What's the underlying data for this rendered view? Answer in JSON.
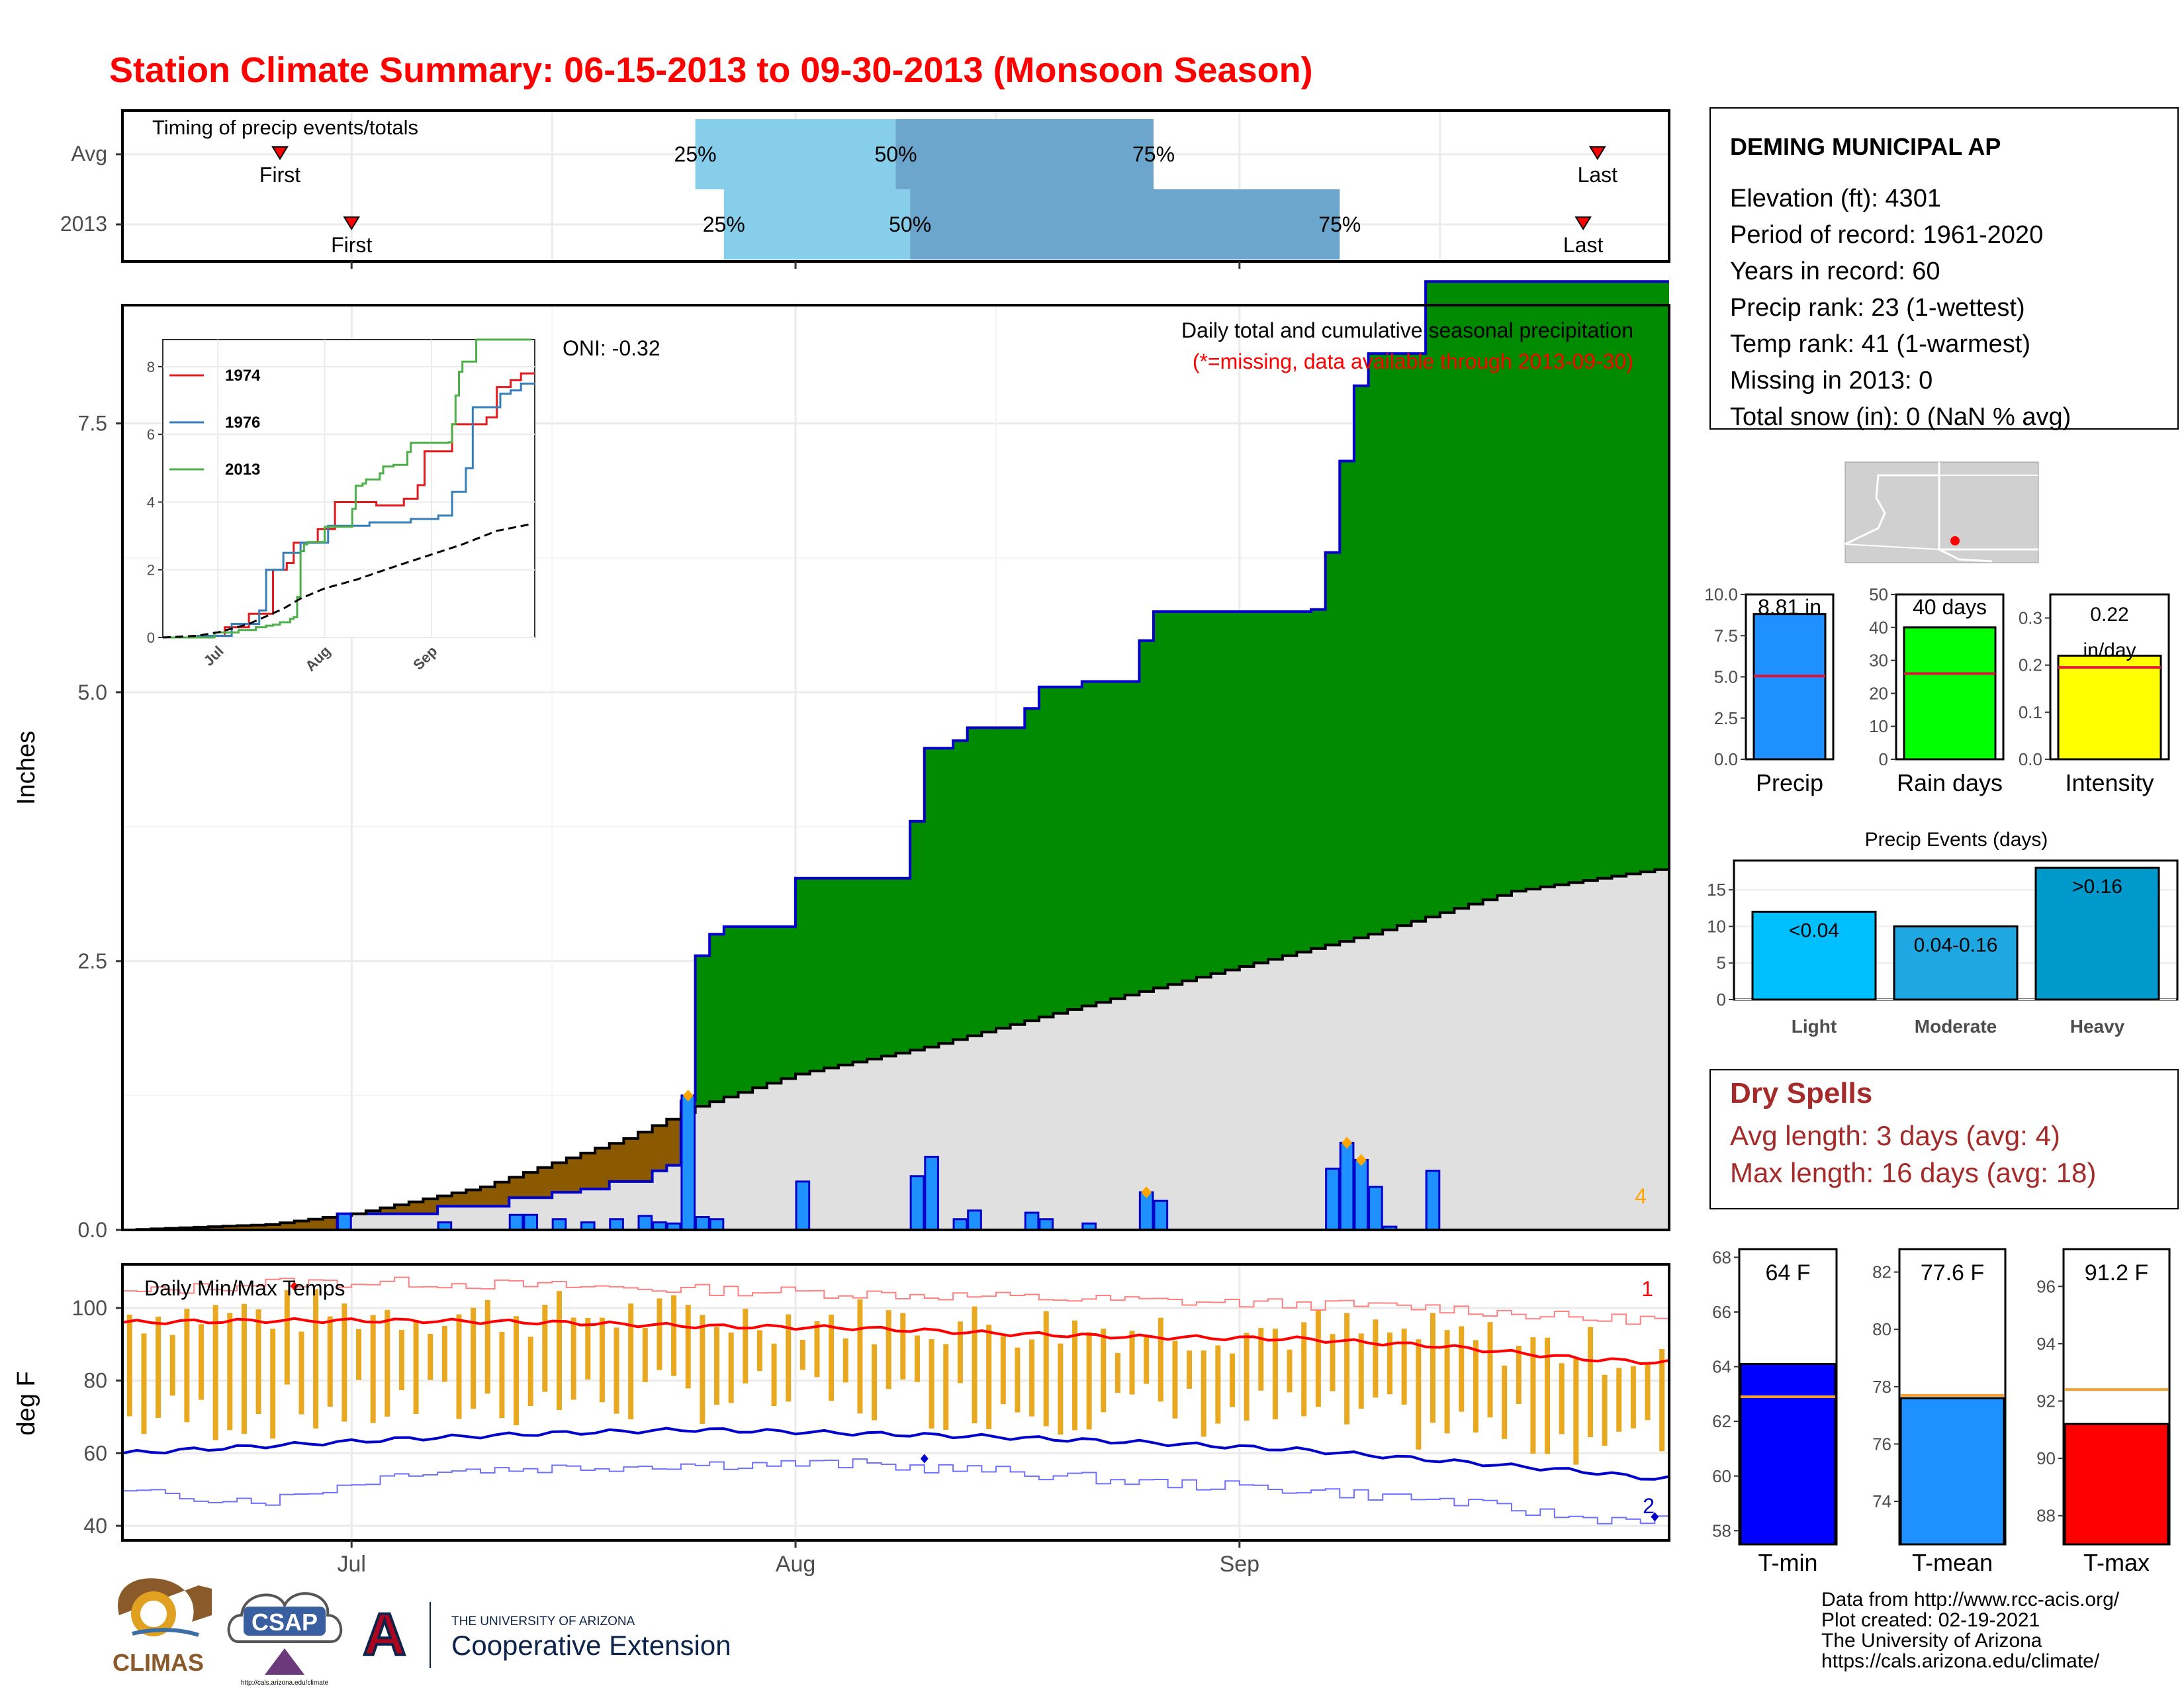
{
  "title": "Station Climate Summary: 06-15-2013 to 09-30-2013 (Monsoon Season)",
  "month_labels": [
    "Jul",
    "Aug",
    "Sep"
  ],
  "timing": {
    "label": "Timing of precip events/totals",
    "rows": [
      {
        "name": "Avg",
        "first": "2013-06-26",
        "p25": "2013-07-25",
        "p50": "2013-08-08",
        "p75": "2013-08-26",
        "last": "2013-09-26"
      },
      {
        "name": "2013",
        "first": "2013-07-01",
        "p25": "2013-07-27",
        "p50": "2013-08-09",
        "p75": "2013-09-08",
        "last": "2013-09-25"
      }
    ],
    "first_label": "First",
    "last_label": "Last",
    "pct_labels": [
      "25%",
      "50%",
      "75%"
    ]
  },
  "precip": {
    "ylabel": "Inches",
    "y_ticks": [
      "0.0",
      "2.5",
      "5.0",
      "7.5"
    ],
    "subtitle": "Daily total and cumulative seasonal precipitation",
    "note": "(*=missing, data available through 2013-09-30)",
    "oni": "ONI: -0.32",
    "count_label": "4"
  },
  "inset": {
    "legend": [
      "1974",
      "1976",
      "2013"
    ],
    "y_ticks": [
      "0",
      "2",
      "4",
      "6",
      "8"
    ],
    "x_ticks": [
      "Jul",
      "Aug",
      "Sep"
    ]
  },
  "temps": {
    "label": "Daily Min/Max Temps",
    "ylabel": "deg F",
    "y_ticks": [
      "40",
      "60",
      "80",
      "100"
    ],
    "high_count": "1",
    "low_count": "2"
  },
  "station": {
    "name": "DEMING MUNICIPAL AP",
    "lines": [
      "Elevation (ft): 4301",
      "Period of record: 1961-2020",
      "Years in record: 60",
      "Precip rank: 23 (1-wettest)",
      "Temp rank: 41 (1-warmest)",
      "Missing in 2013: 0",
      "Total snow (in): 0 (NaN % avg)"
    ]
  },
  "small_bars": [
    {
      "name": "Precip",
      "label": "8.81 in",
      "value": 8.81,
      "avg": 5.05,
      "ymax": 10,
      "ticks": [
        "0.0",
        "2.5",
        "5.0",
        "7.5",
        "10.0"
      ],
      "color": "#1e90ff"
    },
    {
      "name": "Rain days",
      "label": "40 days",
      "value": 40,
      "avg": 26,
      "ymax": 50,
      "ticks": [
        "0",
        "10",
        "20",
        "30",
        "40",
        "50"
      ],
      "color": "#00ff00"
    },
    {
      "name": "Intensity",
      "label": "0.22 in/day",
      "value": 0.22,
      "avg": 0.195,
      "ymax": 0.35,
      "ticks": [
        "0.0",
        "0.1",
        "0.2",
        "0.3"
      ],
      "color": "#ffff00"
    }
  ],
  "events": {
    "title": "Precip Events (days)",
    "ticks": [
      "0",
      "5",
      "10",
      "15"
    ],
    "bars": [
      {
        "name": "Light",
        "label": "<0.04",
        "value": 12,
        "color": "#00bfff"
      },
      {
        "name": "Moderate",
        "label": "0.04-0.16",
        "value": 10,
        "color": "#1ea7e0"
      },
      {
        "name": "Heavy",
        "label": ">0.16",
        "value": 18,
        "color": "#0099cc"
      }
    ]
  },
  "dry_spells": {
    "title": "Dry Spells",
    "lines": [
      "Avg length: 3 days (avg: 4)",
      "Max length: 16 days (avg: 18)"
    ]
  },
  "temp_bars": [
    {
      "name": "T-min",
      "label": "64 F",
      "value": 64.1,
      "avg": 62.9,
      "ymin": 57.5,
      "ymax": 68.3,
      "ticks": [
        "58",
        "60",
        "62",
        "64",
        "66",
        "68"
      ],
      "color": "#0000ff"
    },
    {
      "name": "T-mean",
      "label": "77.6 F",
      "value": 77.6,
      "avg": 77.7,
      "ymin": 72.5,
      "ymax": 82.8,
      "ticks": [
        "74",
        "76",
        "78",
        "80",
        "82"
      ],
      "color": "#1e90ff"
    },
    {
      "name": "T-max",
      "label": "91.2 F",
      "value": 91.2,
      "avg": 92.4,
      "ymin": 87,
      "ymax": 97.3,
      "ticks": [
        "88",
        "90",
        "92",
        "94",
        "96"
      ],
      "color": "#ff0000"
    }
  ],
  "footer": [
    "Data from http://www.rcc-acis.org/",
    "Plot created: 02-19-2021",
    "The University of Arizona",
    "https://cals.arizona.edu/climate/"
  ],
  "logos": {
    "climas": "CLIMAS",
    "csap": "CSAP",
    "csap_url": "http://cals.arizona.edu/climate",
    "ua_line1": "THE UNIVERSITY OF ARIZONA",
    "ua_line2": "Cooperative Extension",
    "ua_letter": "A"
  },
  "chart_data": [
    {
      "type": "area",
      "title": "Daily total and cumulative seasonal precipitation",
      "ylabel": "Inches",
      "xlim": [
        "2013-06-15",
        "2013-09-30"
      ],
      "ylim": [
        0,
        8.6
      ],
      "series": [
        {
          "name": "2013 cumulative",
          "x": [
            "2013-06-15",
            "2013-06-30",
            "2013-07-03",
            "2013-07-07",
            "2013-07-09",
            "2013-07-12",
            "2013-07-15",
            "2013-07-17",
            "2013-07-19",
            "2013-07-22",
            "2013-07-23",
            "2013-07-24",
            "2013-07-25",
            "2013-07-26",
            "2013-07-27",
            "2013-07-29",
            "2013-08-01",
            "2013-08-06",
            "2013-08-09",
            "2013-08-10",
            "2013-08-12",
            "2013-08-13",
            "2013-08-17",
            "2013-08-18",
            "2013-08-21",
            "2013-08-25",
            "2013-08-26",
            "2013-08-27",
            "2013-09-06",
            "2013-09-07",
            "2013-09-08",
            "2013-09-09",
            "2013-09-10",
            "2013-09-11",
            "2013-09-14",
            "2013-09-30"
          ],
          "values": [
            0,
            0.15,
            0.15,
            0.22,
            0.22,
            0.3,
            0.35,
            0.38,
            0.45,
            0.55,
            0.6,
            1.2,
            2.55,
            2.75,
            2.82,
            2.82,
            3.27,
            3.27,
            3.8,
            4.48,
            4.55,
            4.67,
            4.85,
            5.05,
            5.1,
            5.48,
            5.75,
            5.75,
            5.77,
            6.3,
            7.15,
            7.85,
            8.15,
            8.15,
            8.82,
            8.82
          ]
        },
        {
          "name": "Daily precip",
          "x": [
            "2013-06-30",
            "2013-07-07",
            "2013-07-12",
            "2013-07-13",
            "2013-07-15",
            "2013-07-17",
            "2013-07-19",
            "2013-07-21",
            "2013-07-22",
            "2013-07-23",
            "2013-07-24",
            "2013-07-25",
            "2013-07-26",
            "2013-08-01",
            "2013-08-09",
            "2013-08-10",
            "2013-08-12",
            "2013-08-13",
            "2013-08-17",
            "2013-08-18",
            "2013-08-21",
            "2013-08-25",
            "2013-08-26",
            "2013-09-07",
            "2013-09-08",
            "2013-09-09",
            "2013-09-10",
            "2013-09-11",
            "2013-09-14"
          ],
          "values": [
            0.15,
            0.07,
            0.14,
            0.14,
            0.1,
            0.07,
            0.1,
            0.13,
            0.07,
            0.06,
            1.25,
            0.12,
            0.1,
            0.45,
            0.5,
            0.68,
            0.1,
            0.18,
            0.16,
            0.1,
            0.06,
            0.35,
            0.27,
            0.57,
            0.81,
            0.65,
            0.4,
            0.03,
            0.55
          ]
        },
        {
          "name": "Average cumulative",
          "x": [
            "2013-06-15",
            "2013-06-25",
            "2013-07-01",
            "2013-07-10",
            "2013-07-20",
            "2013-07-25",
            "2013-08-01",
            "2013-08-10",
            "2013-08-20",
            "2013-09-01",
            "2013-09-10",
            "2013-09-20",
            "2013-09-30"
          ],
          "values": [
            0,
            0.05,
            0.15,
            0.4,
            0.85,
            1.15,
            1.45,
            1.7,
            2.05,
            2.45,
            2.75,
            3.15,
            3.35
          ]
        }
      ]
    },
    {
      "type": "line",
      "title": "Daily Min/Max Temps",
      "ylabel": "deg F",
      "ylim": [
        36,
        112
      ],
      "x": [
        "2013-06-15",
        "2013-06-25",
        "2013-07-05",
        "2013-07-15",
        "2013-07-25",
        "2013-08-05",
        "2013-08-15",
        "2013-08-25",
        "2013-09-05",
        "2013-09-15",
        "2013-09-25",
        "2013-09-30"
      ],
      "series": [
        {
          "name": "Avg max",
          "values": [
            96,
            96.5,
            96.5,
            96,
            95,
            94.5,
            93,
            92,
            91.5,
            89.5,
            86,
            85
          ]
        },
        {
          "name": "Avg min",
          "values": [
            60,
            62,
            64,
            65.5,
            66.5,
            65.5,
            64.5,
            63,
            61,
            58,
            55,
            53
          ]
        },
        {
          "name": "Record high",
          "values": [
            104,
            107,
            107,
            106,
            105,
            104,
            103,
            102,
            101,
            100,
            97,
            97
          ]
        },
        {
          "name": "Record low",
          "values": [
            49,
            47,
            55,
            56,
            57,
            57,
            55,
            52,
            50,
            47,
            42,
            42
          ]
        }
      ]
    }
  ]
}
